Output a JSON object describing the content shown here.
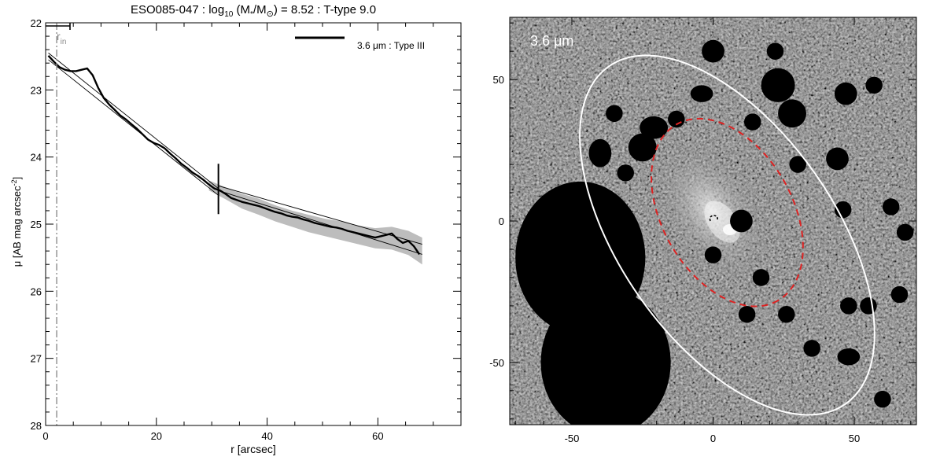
{
  "chart_data": [
    {
      "type": "line",
      "title_prefix": "ESO085-047 : log",
      "title_sub": "10",
      "title_paren": " (M",
      "title_star": "*",
      "title_slash": "/M",
      "title_sun": "⊙",
      "title_suffix": ") = 8.52 : T-type 9.0",
      "xlabel": "r [arcsec]",
      "ylabel_main": "μ [AB mag arcsec",
      "ylabel_sup": "-2",
      "ylabel_close": "]",
      "xlim": [
        0,
        75
      ],
      "ylim": [
        22,
        28
      ],
      "y_inverted": true,
      "x_ticks": [
        0,
        20,
        40,
        60
      ],
      "x_tick_labels": [
        "0",
        "20",
        "40",
        "60"
      ],
      "y_ticks": [
        22,
        23,
        24,
        25,
        26,
        27,
        28
      ],
      "y_tick_labels": [
        "22",
        "23",
        "24",
        "25",
        "26",
        "27",
        "28"
      ],
      "legend": {
        "label": "3.6 μm : Type III",
        "position": "top-right"
      },
      "r_in": {
        "label": "r",
        "label_sub": "in",
        "value": 2.0,
        "bar_start": 0.0,
        "bar_end": 4.4
      },
      "break_radius": 31.2,
      "series": [
        {
          "style": "thick-black",
          "x": [
            0.5,
            1.5,
            2.5,
            3.5,
            4.5,
            5.5,
            6.5,
            7.5,
            8.5,
            9.5,
            10.5,
            11.5,
            12.5,
            13.5,
            14.5,
            15.5,
            16.5,
            17.5,
            18.5,
            19.5,
            20.5,
            21.5,
            22.5,
            23.5,
            24.5,
            25.5,
            26.5,
            27.5,
            28.5,
            29.5,
            30.5,
            31.5,
            32.5,
            33.5,
            34.5,
            35.5,
            36.5,
            37.5,
            38.5,
            39.5,
            40.5,
            41.5,
            42.5,
            43.5,
            44.5,
            45.5,
            46.5,
            47.5,
            48.5,
            49.5,
            50.5,
            51.5,
            52.5,
            53.5,
            54.5,
            55.5,
            56.5,
            57.5,
            58.5,
            59.5,
            60.5,
            61.5,
            62.5,
            63.5,
            64.5,
            65.5,
            66.5,
            67.5
          ],
          "values": [
            22.49,
            22.58,
            22.66,
            22.7,
            22.72,
            22.72,
            22.7,
            22.68,
            22.78,
            22.97,
            23.12,
            23.22,
            23.3,
            23.38,
            23.44,
            23.51,
            23.58,
            23.66,
            23.74,
            23.79,
            23.82,
            23.87,
            23.95,
            24.02,
            24.1,
            24.16,
            24.23,
            24.28,
            24.34,
            24.41,
            24.47,
            24.5,
            24.55,
            24.61,
            24.64,
            24.67,
            24.69,
            24.71,
            24.73,
            24.76,
            24.79,
            24.82,
            24.84,
            24.87,
            24.89,
            24.9,
            24.93,
            24.95,
            24.98,
            25.0,
            25.02,
            25.04,
            25.05,
            25.07,
            25.1,
            25.12,
            25.14,
            25.16,
            25.18,
            25.2,
            25.18,
            25.16,
            25.14,
            25.22,
            25.28,
            25.25,
            25.33,
            25.45
          ]
        }
      ],
      "uncertainty_band": {
        "x": [
          29.5,
          32.5,
          35.5,
          38.5,
          41.5,
          44.5,
          47.5,
          50.5,
          53.5,
          56.5,
          59.5,
          62.5,
          65.5,
          68.0
        ],
        "lower": [
          24.35,
          24.45,
          24.55,
          24.62,
          24.72,
          24.8,
          24.86,
          24.92,
          24.96,
          25.02,
          25.06,
          25.04,
          25.1,
          25.2
        ],
        "upper": [
          24.5,
          24.63,
          24.77,
          24.86,
          24.96,
          25.04,
          25.12,
          25.18,
          25.24,
          25.3,
          25.36,
          25.38,
          25.46,
          25.6
        ]
      },
      "fit_lines": [
        {
          "name": "inner",
          "x": [
            0.5,
            31.2
          ],
          "values": [
            22.55,
            24.57
          ]
        },
        {
          "name": "inner-upper",
          "x": [
            0.5,
            31.2
          ],
          "values": [
            22.45,
            24.47
          ]
        },
        {
          "name": "outer",
          "x": [
            31.2,
            68.0
          ],
          "values": [
            24.5,
            25.45
          ]
        },
        {
          "name": "outer-upper",
          "x": [
            31.2,
            68.0
          ],
          "values": [
            24.43,
            25.3
          ]
        }
      ]
    },
    {
      "type": "heatmap",
      "label": "3.6 μm",
      "xlim": [
        -72,
        72
      ],
      "ylim": [
        -72,
        72
      ],
      "x_ticks": [
        -50,
        0,
        50
      ],
      "x_tick_labels": [
        "-50",
        "0",
        "50"
      ],
      "y_ticks": [
        50,
        0,
        -50
      ],
      "y_tick_labels": [
        "50",
        "0",
        "-50"
      ],
      "outer_ellipse": {
        "center": [
          5,
          -5
        ],
        "semi_major": 73,
        "semi_minor": 38,
        "angle_deg": 55,
        "color": "#ffffff"
      },
      "inner_ellipse": {
        "center": [
          5,
          3
        ],
        "semi_major": 36,
        "semi_minor": 23,
        "angle_deg": 60,
        "color": "#dd2222"
      },
      "colors": {
        "background": "#1a1a1a",
        "galaxy": "#e8e8e8"
      }
    }
  ]
}
